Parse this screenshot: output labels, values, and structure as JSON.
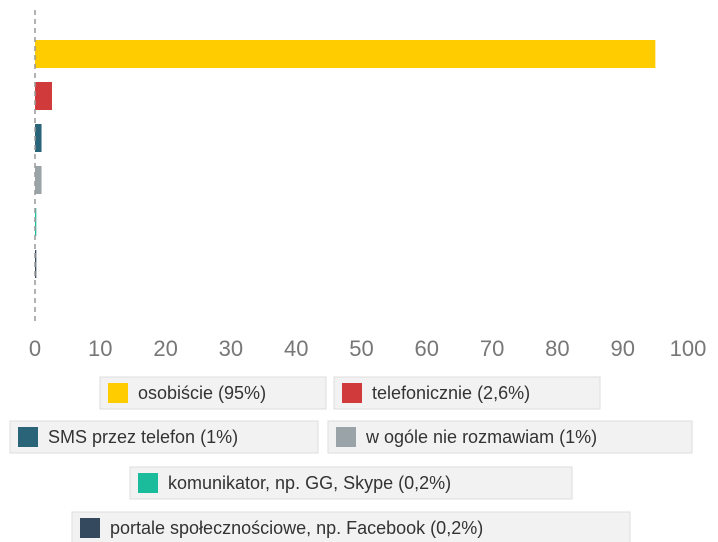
{
  "chart_data": {
    "type": "bar",
    "orientation": "horizontal",
    "series": [
      {
        "name": "osobiście (95%)",
        "color": "#ffcc00",
        "values": [
          95
        ]
      },
      {
        "name": "telefonicznie (2,6%)",
        "color": "#d13a3a",
        "values": [
          2.6
        ]
      },
      {
        "name": "SMS przez telefon (1%)",
        "color": "#2a6478",
        "values": [
          1
        ]
      },
      {
        "name": "w ogóle nie rozmawiam (1%)",
        "color": "#9aa3a8",
        "values": [
          1
        ]
      },
      {
        "name": "komunikator, np. GG, Skype (0,2%)",
        "color": "#1abc9c",
        "values": [
          0.2
        ]
      },
      {
        "name": "portale społecznościowe, np. Facebook (0,2%)",
        "color": "#34495e",
        "values": [
          0.2
        ]
      }
    ],
    "xlim": [
      0,
      100
    ],
    "xticks": [
      0,
      10,
      20,
      30,
      40,
      50,
      60,
      70,
      80,
      90,
      100
    ]
  }
}
